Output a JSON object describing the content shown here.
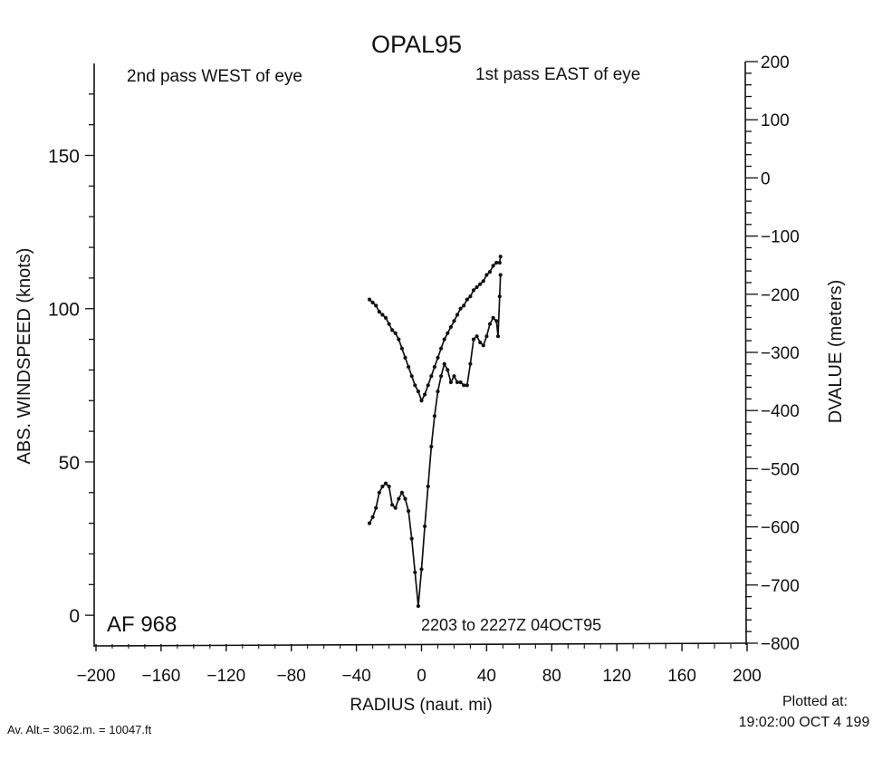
{
  "chart_data": {
    "type": "line",
    "title": "OPAL95",
    "xlabel": "RADIUS (naut. mi)",
    "ylabel_left": "ABS. WINDSPEED (knots)",
    "ylabel_right": "DVALUE (meters)",
    "xlim": [
      -200,
      200
    ],
    "ylim_left": [
      -10,
      180
    ],
    "ylim_right": [
      -800,
      200
    ],
    "x_ticks": [
      -200,
      -160,
      -120,
      -80,
      -40,
      0,
      40,
      80,
      120,
      160,
      200
    ],
    "y_left_ticks": [
      0,
      50,
      100,
      150
    ],
    "y_right_ticks": [
      -800,
      -700,
      -600,
      -500,
      -400,
      -300,
      -200,
      -100,
      0,
      100,
      200
    ],
    "grid": false,
    "annotations": {
      "west_pass": "2nd pass WEST of eye",
      "east_pass": "1st pass EAST of eye",
      "aircraft": "AF 968",
      "time_range": "2203 to 2227Z 04OCT95"
    },
    "series": [
      {
        "axis": "left",
        "x": [
          -32,
          -30,
          -28,
          -26,
          -24,
          -22,
          -20,
          -18,
          -16,
          -14,
          -12,
          -10,
          -8,
          -6,
          -4,
          -2,
          0,
          2,
          4,
          6,
          8,
          10,
          12,
          14,
          16,
          18,
          20,
          22,
          24,
          26,
          28,
          30,
          32,
          34,
          36,
          38,
          40,
          42,
          44,
          46,
          48,
          48.5
        ],
        "values": [
          103,
          102,
          101,
          99,
          98,
          97,
          95,
          93,
          92,
          90,
          87,
          84,
          81,
          78,
          75,
          73,
          70,
          72,
          75,
          78,
          81,
          84,
          87,
          90,
          92,
          94,
          96,
          98,
          100,
          101,
          103,
          104,
          106,
          107,
          108,
          109,
          111,
          112,
          114,
          115,
          115,
          117
        ]
      },
      {
        "axis": "left",
        "x": [
          -32,
          -30,
          -28,
          -26,
          -24,
          -22,
          -20,
          -18,
          -16,
          -14,
          -12,
          -10,
          -8,
          -6,
          -4,
          -2,
          0,
          2,
          4,
          6,
          8,
          10,
          12,
          14,
          16,
          18,
          20,
          22,
          24,
          26,
          28,
          30,
          32,
          34,
          36,
          38,
          40,
          42,
          44,
          46,
          47,
          48,
          48.5
        ],
        "values": [
          30,
          32,
          35,
          40,
          42,
          43,
          42,
          36,
          35,
          38,
          40,
          38,
          34,
          25,
          14,
          3,
          15,
          29,
          42,
          55,
          65,
          73,
          78,
          82,
          80,
          76,
          78,
          76,
          76,
          75,
          75,
          82,
          90,
          91,
          89,
          88,
          91,
          95,
          97,
          96,
          91,
          104,
          111
        ]
      }
    ]
  },
  "footer": {
    "avg_alt": "Av. Alt.= 3062.m. = 10047.ft",
    "plotted_label": "Plotted at:",
    "plotted_time": "19:02:00 OCT  4 199"
  }
}
